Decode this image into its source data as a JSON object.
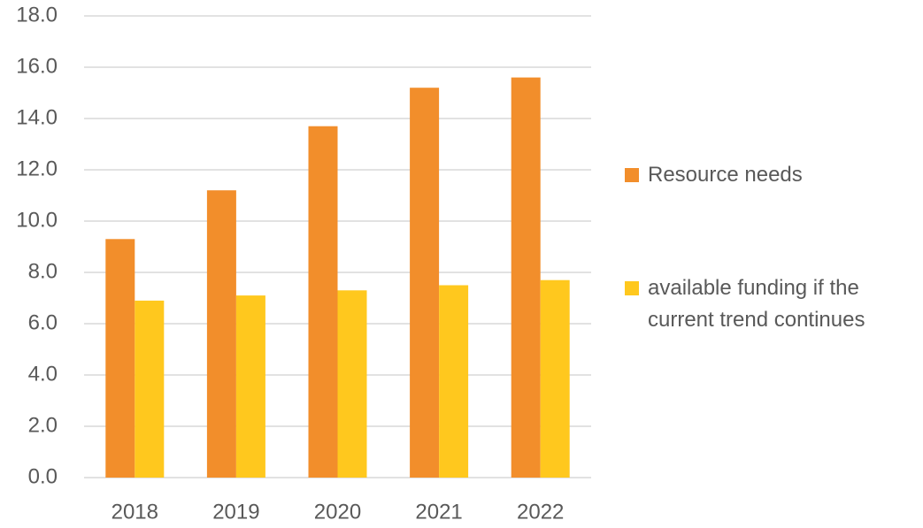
{
  "chart_data": {
    "type": "bar",
    "categories": [
      "2018",
      "2019",
      "2020",
      "2021",
      "2022"
    ],
    "series": [
      {
        "name": "Resource needs",
        "color": "#f28e2b",
        "values": [
          9.3,
          11.2,
          13.7,
          15.2,
          15.6
        ]
      },
      {
        "name": "available funding if the current trend continues",
        "color": "#ffc81e",
        "values": [
          6.9,
          7.1,
          7.3,
          7.5,
          7.7
        ]
      }
    ],
    "ylim": [
      0,
      18
    ],
    "yticks": [
      {
        "value": 0,
        "label": "0.0"
      },
      {
        "value": 2,
        "label": "2.0"
      },
      {
        "value": 4,
        "label": "4.0"
      },
      {
        "value": 6,
        "label": "6.0"
      },
      {
        "value": 8,
        "label": "8.0"
      },
      {
        "value": 10,
        "label": "10.0"
      },
      {
        "value": 12,
        "label": "12.0"
      },
      {
        "value": 14,
        "label": "14.0"
      },
      {
        "value": 16,
        "label": "16.0"
      },
      {
        "value": 18,
        "label": "18.0"
      }
    ],
    "grid": true,
    "legend": "right"
  }
}
